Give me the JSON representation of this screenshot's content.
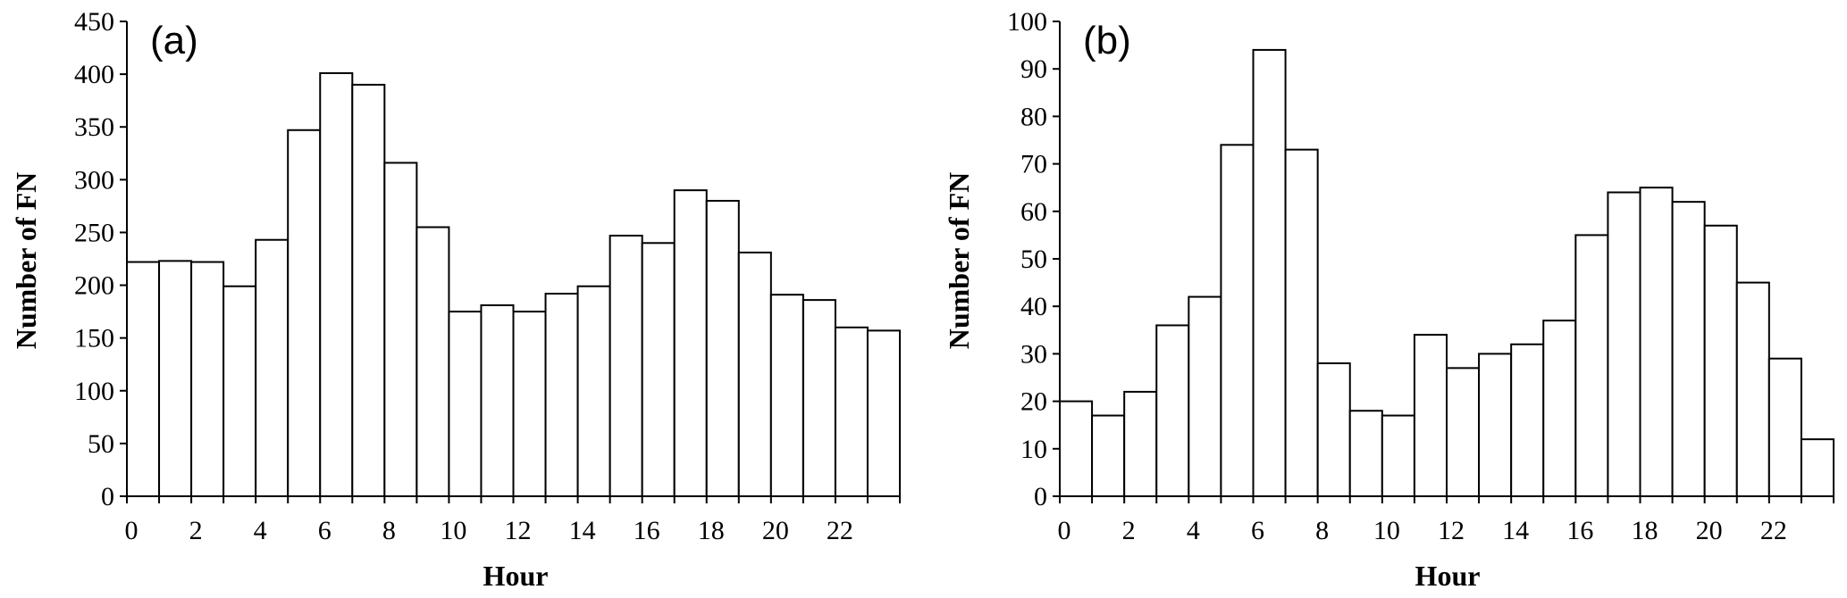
{
  "chart_data": [
    {
      "type": "bar",
      "panel_label": "(a)",
      "xlabel": "Hour",
      "ylabel": "Number of FN",
      "categories": [
        0,
        1,
        2,
        3,
        4,
        5,
        6,
        7,
        8,
        9,
        10,
        11,
        12,
        13,
        14,
        15,
        16,
        17,
        18,
        19,
        20,
        21,
        22,
        23
      ],
      "x_tick_labels": [
        "0",
        "2",
        "4",
        "6",
        "8",
        "10",
        "12",
        "14",
        "16",
        "18",
        "20",
        "22"
      ],
      "values": [
        222,
        223,
        222,
        199,
        243,
        347,
        401,
        390,
        316,
        255,
        175,
        181,
        175,
        192,
        199,
        247,
        240,
        290,
        280,
        231,
        191,
        186,
        160,
        157
      ],
      "ylim": [
        0,
        450
      ],
      "y_ticks": [
        0,
        50,
        100,
        150,
        200,
        250,
        300,
        350,
        400,
        450
      ],
      "grid": false
    },
    {
      "type": "bar",
      "panel_label": "(b)",
      "xlabel": "Hour",
      "ylabel": "Number of FN",
      "categories": [
        0,
        1,
        2,
        3,
        4,
        5,
        6,
        7,
        8,
        9,
        10,
        11,
        12,
        13,
        14,
        15,
        16,
        17,
        18,
        19,
        20,
        21,
        22,
        23
      ],
      "x_tick_labels": [
        "0",
        "2",
        "4",
        "6",
        "8",
        "10",
        "12",
        "14",
        "16",
        "18",
        "20",
        "22"
      ],
      "values": [
        20,
        17,
        22,
        36,
        42,
        74,
        94,
        73,
        28,
        18,
        17,
        34,
        27,
        30,
        32,
        37,
        55,
        64,
        65,
        62,
        57,
        45,
        29,
        12
      ],
      "ylim": [
        0,
        100
      ],
      "y_ticks": [
        0,
        10,
        20,
        30,
        40,
        50,
        60,
        70,
        80,
        90,
        100
      ],
      "grid": false
    }
  ]
}
